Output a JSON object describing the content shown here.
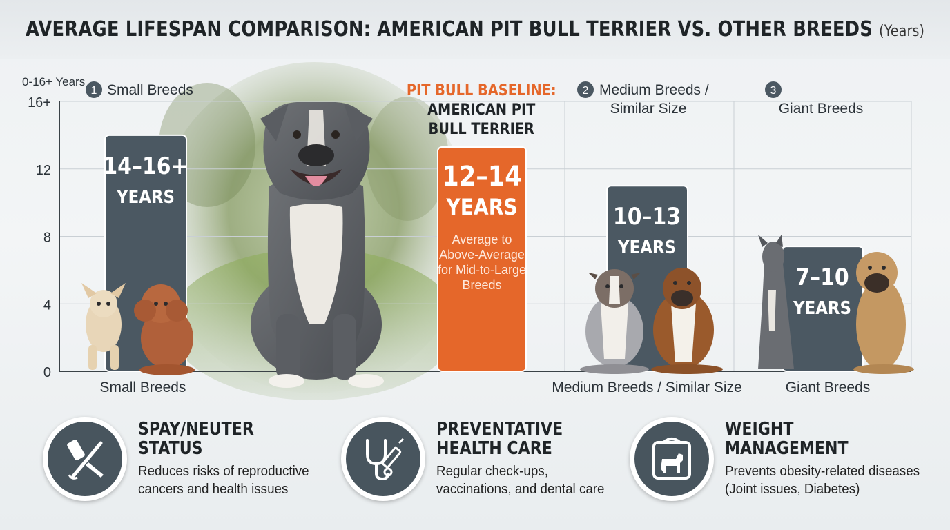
{
  "title": "AVERAGE LIFESPAN COMPARISON: AMERICAN PIT BULL TERRIER VS. OTHER BREEDS",
  "title_unit": "(Years)",
  "colors": {
    "accent_orange": "#e5672a",
    "slate": "#4b5862",
    "circle_badge": "#4b5862"
  },
  "chart_data": {
    "type": "bar",
    "ylabel": "0-16+ Years",
    "yticks": [
      "0",
      "4",
      "8",
      "12",
      "16+"
    ],
    "ylim": [
      0,
      16
    ],
    "grid": true,
    "categories": [
      "Small Breeds",
      "American Pit Bull Terrier",
      "Medium Breeds / Similar Size",
      "Giant Breeds"
    ],
    "bars": [
      {
        "range": [
          14,
          16
        ],
        "height_value": 14,
        "label_line1": "14–16+",
        "label_line2": "YEARS",
        "color": "#4b5862",
        "x_label": "Small Breeds",
        "num": "1",
        "header": "Small Breeds"
      },
      {
        "range": [
          12,
          14
        ],
        "height_value": 13.3,
        "label_line1": "12–14",
        "label_line2": "YEARS",
        "color": "#e5672a",
        "sub": [
          "Average to",
          "Above-Average",
          "for Mid-to-Large",
          "Breeds"
        ],
        "header_accent": "PIT BULL BASELINE:",
        "header_lines": [
          "AMERICAN PIT",
          "BULL TERRIER"
        ]
      },
      {
        "range": [
          10,
          13
        ],
        "height_value": 11,
        "label_line1": "10–13",
        "label_line2": "YEARS",
        "color": "#4b5862",
        "x_label": "Medium Breeds / Similar Size",
        "num": "2",
        "header_lines": [
          "Medium Breeds /",
          "Similar Size"
        ]
      },
      {
        "range": [
          7,
          10
        ],
        "height_value": 7.4,
        "label_line1": "7–10",
        "label_line2": "YEARS",
        "color": "#4b5862",
        "x_label": "Giant Breeds",
        "num": "3",
        "header_lines": [
          "Giant Breeds"
        ]
      }
    ]
  },
  "features": [
    {
      "title": "SPAY/NEUTER\nSTATUS",
      "desc": "Reduces risks of reproductive\ncancers and health issues",
      "icon": "syringe-scalpel-icon"
    },
    {
      "title": "PREVENTATIVE\nHEALTH CARE",
      "desc": "Regular check-ups,\nvaccinations, and dental care",
      "icon": "stethoscope-icon"
    },
    {
      "title": "WEIGHT\nMANAGEMENT",
      "desc": "Prevents obesity-related diseases\n(Joint issues, Diabetes)",
      "icon": "scale-dog-icon"
    }
  ]
}
